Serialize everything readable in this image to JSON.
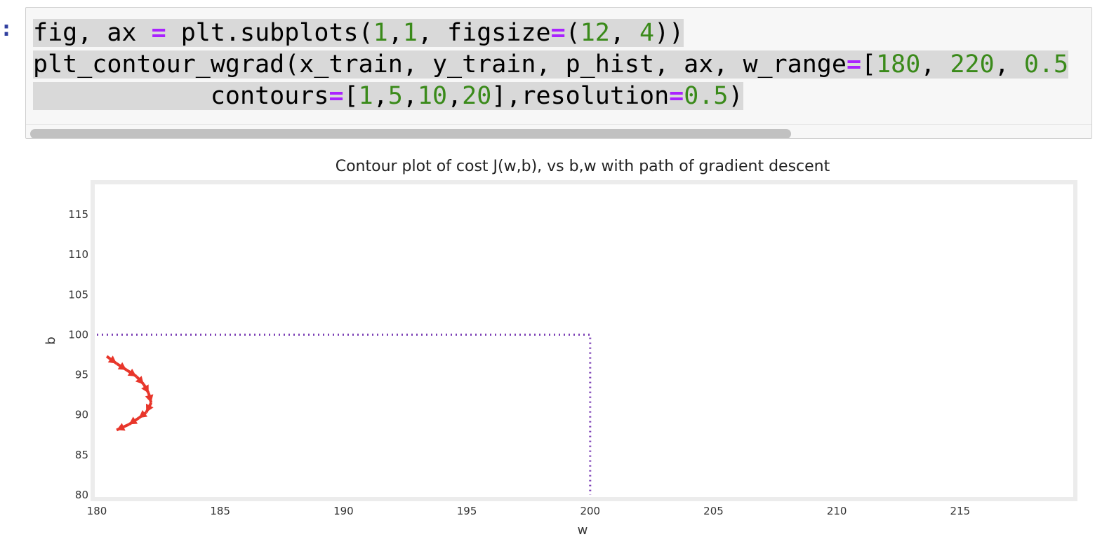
{
  "cell": {
    "prompt": ":",
    "code_lines": [
      [
        {
          "t": "fig, ax ",
          "k": "txt"
        },
        {
          "t": "=",
          "k": "op"
        },
        {
          "t": " plt.subplots(",
          "k": "txt"
        },
        {
          "t": "1",
          "k": "num"
        },
        {
          "t": ",",
          "k": "txt"
        },
        {
          "t": "1",
          "k": "num"
        },
        {
          "t": ", figsize",
          "k": "txt"
        },
        {
          "t": "=",
          "k": "op"
        },
        {
          "t": "(",
          "k": "txt"
        },
        {
          "t": "12",
          "k": "num"
        },
        {
          "t": ", ",
          "k": "txt"
        },
        {
          "t": "4",
          "k": "num"
        },
        {
          "t": "))",
          "k": "txt"
        }
      ],
      [
        {
          "t": "plt_contour_wgrad(x_train, y_train, p_hist, ax, w_range",
          "k": "txt"
        },
        {
          "t": "=",
          "k": "op"
        },
        {
          "t": "[",
          "k": "txt"
        },
        {
          "t": "180",
          "k": "num"
        },
        {
          "t": ", ",
          "k": "txt"
        },
        {
          "t": "220",
          "k": "num"
        },
        {
          "t": ", ",
          "k": "txt"
        },
        {
          "t": "0.5",
          "k": "num"
        }
      ],
      [
        {
          "t": "            contours",
          "k": "txt"
        },
        {
          "t": "=",
          "k": "op"
        },
        {
          "t": "[",
          "k": "txt"
        },
        {
          "t": "1",
          "k": "num"
        },
        {
          "t": ",",
          "k": "txt"
        },
        {
          "t": "5",
          "k": "num"
        },
        {
          "t": ",",
          "k": "txt"
        },
        {
          "t": "10",
          "k": "num"
        },
        {
          "t": ",",
          "k": "txt"
        },
        {
          "t": "20",
          "k": "num"
        },
        {
          "t": "],resolution",
          "k": "txt"
        },
        {
          "t": "=",
          "k": "op"
        },
        {
          "t": "0.5",
          "k": "num"
        },
        {
          "t": ")",
          "k": "txt"
        }
      ]
    ],
    "colors": {
      "operator": "#aa22ff",
      "number": "#3a8a1a",
      "prompt": "#303f9f"
    }
  },
  "chart_data": {
    "type": "line",
    "title": "Contour plot of cost J(w,b), vs b,w with path of gradient descent",
    "xlabel": "w",
    "ylabel": "b",
    "xlim": [
      180,
      219.5
    ],
    "ylim": [
      80,
      118.5
    ],
    "x_ticks": [
      "180",
      "185",
      "190",
      "195",
      "200",
      "205",
      "210",
      "215"
    ],
    "y_ticks": [
      "80",
      "85",
      "90",
      "95",
      "100",
      "105",
      "110",
      "115"
    ],
    "grid": false,
    "series": [
      {
        "style": "dotted",
        "color": "#7b3fb5",
        "x": [
          180,
          200,
          200
        ],
        "y": [
          100,
          100,
          80
        ]
      },
      {
        "style": "arrows",
        "color": "#e8362b",
        "points": [
          [
            180.4,
            97.3
          ],
          [
            180.8,
            96.4
          ],
          [
            181.2,
            95.6
          ],
          [
            181.6,
            94.8
          ],
          [
            181.9,
            93.8
          ],
          [
            182.1,
            92.7
          ],
          [
            182.2,
            91.5
          ],
          [
            182.0,
            90.3
          ],
          [
            181.7,
            89.6
          ],
          [
            181.3,
            88.8
          ],
          [
            180.8,
            88.1
          ]
        ]
      }
    ]
  }
}
